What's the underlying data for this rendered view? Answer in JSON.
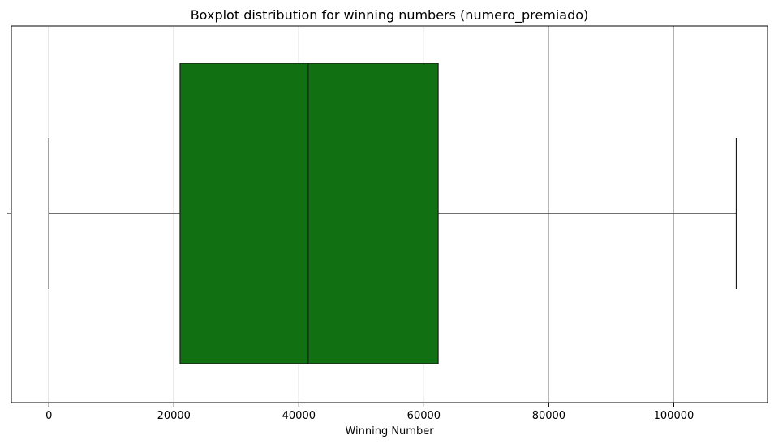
{
  "chart_data": {
    "type": "boxplot",
    "title": "Boxplot distribution for winning numbers (numero_premiado)",
    "xlabel": "Winning Number",
    "ylabel": "",
    "orientation": "horizontal",
    "xlim": [
      -6000,
      115000
    ],
    "xticks": [
      0,
      20000,
      40000,
      60000,
      80000,
      100000
    ],
    "xtick_labels": [
      "0",
      "20000",
      "40000",
      "60000",
      "80000",
      "100000"
    ],
    "grid": "vertical",
    "box": {
      "min": 0,
      "q1": 21000,
      "median": 41500,
      "q3": 62300,
      "max": 110000,
      "color": "#117011",
      "edge_color": "#1a1a1a"
    }
  }
}
